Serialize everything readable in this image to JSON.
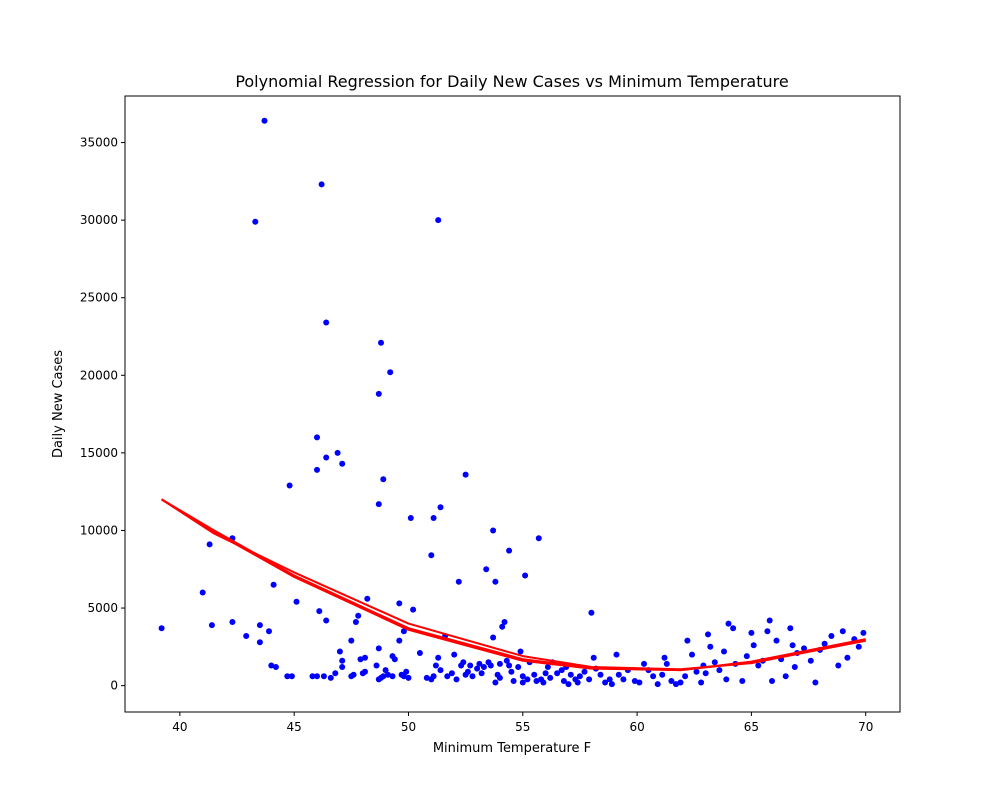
{
  "chart_data": {
    "type": "scatter",
    "title": "Polynomial Regression for Daily New Cases vs Minimum Temperature",
    "xlabel": "Minimum Temperature F",
    "ylabel": "Daily New Cases",
    "xlim": [
      37.6,
      71.5
    ],
    "ylim": [
      -1700,
      38000
    ],
    "x_ticks": [
      40,
      45,
      50,
      55,
      60,
      65,
      70
    ],
    "y_ticks": [
      0,
      5000,
      10000,
      15000,
      20000,
      25000,
      30000,
      35000
    ],
    "grid": false,
    "legend": "none",
    "colors": {
      "points": "#0000ff",
      "fit": "#ff0000"
    },
    "series": [
      {
        "type": "scatter",
        "points": [
          [
            39.2,
            3700
          ],
          [
            41.0,
            6000
          ],
          [
            41.3,
            9100
          ],
          [
            41.4,
            3900
          ],
          [
            42.3,
            9500
          ],
          [
            42.3,
            4100
          ],
          [
            42.9,
            3200
          ],
          [
            43.3,
            29900
          ],
          [
            43.5,
            3900
          ],
          [
            43.5,
            2800
          ],
          [
            43.7,
            36400
          ],
          [
            43.9,
            3500
          ],
          [
            44.0,
            1300
          ],
          [
            44.1,
            6500
          ],
          [
            44.2,
            1200
          ],
          [
            44.7,
            600
          ],
          [
            44.8,
            12900
          ],
          [
            44.9,
            600
          ],
          [
            45.1,
            5400
          ],
          [
            45.8,
            600
          ],
          [
            46.0,
            16000
          ],
          [
            46.0,
            13900
          ],
          [
            46.0,
            600
          ],
          [
            46.1,
            4800
          ],
          [
            46.2,
            32300
          ],
          [
            46.3,
            600
          ],
          [
            46.4,
            14700
          ],
          [
            46.4,
            4200
          ],
          [
            46.4,
            23400
          ],
          [
            46.6,
            500
          ],
          [
            46.8,
            800
          ],
          [
            46.9,
            15000
          ],
          [
            47.0,
            2200
          ],
          [
            47.1,
            14300
          ],
          [
            47.1,
            1200
          ],
          [
            47.1,
            1600
          ],
          [
            47.5,
            2900
          ],
          [
            47.5,
            600
          ],
          [
            47.6,
            700
          ],
          [
            47.7,
            4100
          ],
          [
            47.8,
            4500
          ],
          [
            47.9,
            1700
          ],
          [
            48.0,
            800
          ],
          [
            48.1,
            900
          ],
          [
            48.1,
            1800
          ],
          [
            48.2,
            5600
          ],
          [
            48.6,
            1300
          ],
          [
            48.7,
            18800
          ],
          [
            48.7,
            11700
          ],
          [
            48.7,
            2400
          ],
          [
            48.7,
            400
          ],
          [
            48.8,
            22100
          ],
          [
            48.8,
            500
          ],
          [
            48.9,
            13300
          ],
          [
            48.9,
            600
          ],
          [
            49.0,
            1000
          ],
          [
            49.1,
            700
          ],
          [
            49.2,
            20200
          ],
          [
            49.3,
            1900
          ],
          [
            49.3,
            600
          ],
          [
            49.4,
            1700
          ],
          [
            49.6,
            5300
          ],
          [
            49.6,
            2900
          ],
          [
            49.7,
            700
          ],
          [
            49.8,
            3500
          ],
          [
            49.8,
            600
          ],
          [
            49.9,
            900
          ],
          [
            50.0,
            500
          ],
          [
            50.1,
            10800
          ],
          [
            50.2,
            4900
          ],
          [
            50.5,
            2100
          ],
          [
            50.8,
            500
          ],
          [
            51.0,
            8400
          ],
          [
            51.0,
            400
          ],
          [
            51.1,
            10800
          ],
          [
            51.1,
            600
          ],
          [
            51.2,
            1300
          ],
          [
            51.3,
            1800
          ],
          [
            51.3,
            30000
          ],
          [
            51.4,
            11500
          ],
          [
            51.4,
            1000
          ],
          [
            51.6,
            3200
          ],
          [
            51.7,
            600
          ],
          [
            51.9,
            800
          ],
          [
            52.0,
            2000
          ],
          [
            52.1,
            400
          ],
          [
            52.2,
            6700
          ],
          [
            52.3,
            1300
          ],
          [
            52.4,
            1500
          ],
          [
            52.5,
            13600
          ],
          [
            52.5,
            700
          ],
          [
            52.6,
            900
          ],
          [
            52.7,
            1300
          ],
          [
            52.8,
            600
          ],
          [
            53.0,
            1100
          ],
          [
            53.1,
            1400
          ],
          [
            53.2,
            800
          ],
          [
            53.3,
            1200
          ],
          [
            53.4,
            7500
          ],
          [
            53.5,
            1500
          ],
          [
            53.6,
            1300
          ],
          [
            53.7,
            10000
          ],
          [
            53.7,
            3100
          ],
          [
            53.8,
            6700
          ],
          [
            53.8,
            200
          ],
          [
            53.9,
            700
          ],
          [
            54.0,
            1400
          ],
          [
            54.0,
            500
          ],
          [
            54.1,
            3800
          ],
          [
            54.2,
            4100
          ],
          [
            54.3,
            1600
          ],
          [
            54.4,
            8700
          ],
          [
            54.4,
            1300
          ],
          [
            54.5,
            900
          ],
          [
            54.6,
            300
          ],
          [
            54.8,
            1200
          ],
          [
            54.9,
            2200
          ],
          [
            55.0,
            600
          ],
          [
            55.0,
            200
          ],
          [
            55.1,
            7100
          ],
          [
            55.2,
            400
          ],
          [
            55.3,
            1500
          ],
          [
            55.5,
            700
          ],
          [
            55.6,
            300
          ],
          [
            55.7,
            9500
          ],
          [
            55.8,
            400
          ],
          [
            55.9,
            200
          ],
          [
            56.0,
            800
          ],
          [
            56.1,
            1200
          ],
          [
            56.2,
            500
          ],
          [
            56.3,
            1500
          ],
          [
            56.5,
            800
          ],
          [
            56.7,
            1000
          ],
          [
            56.8,
            300
          ],
          [
            56.9,
            1200
          ],
          [
            57.0,
            100
          ],
          [
            57.1,
            700
          ],
          [
            57.3,
            400
          ],
          [
            57.4,
            200
          ],
          [
            57.5,
            600
          ],
          [
            57.7,
            900
          ],
          [
            57.9,
            400
          ],
          [
            58.0,
            4700
          ],
          [
            58.1,
            1800
          ],
          [
            58.2,
            1100
          ],
          [
            58.4,
            700
          ],
          [
            58.6,
            200
          ],
          [
            58.8,
            400
          ],
          [
            58.9,
            100
          ],
          [
            59.1,
            2000
          ],
          [
            59.2,
            700
          ],
          [
            59.4,
            400
          ],
          [
            59.6,
            1000
          ],
          [
            59.9,
            300
          ],
          [
            60.1,
            200
          ],
          [
            60.3,
            1400
          ],
          [
            60.5,
            1000
          ],
          [
            60.7,
            600
          ],
          [
            60.9,
            100
          ],
          [
            61.1,
            700
          ],
          [
            61.2,
            1800
          ],
          [
            61.3,
            1400
          ],
          [
            61.5,
            300
          ],
          [
            61.7,
            100
          ],
          [
            61.9,
            200
          ],
          [
            62.1,
            600
          ],
          [
            62.2,
            2900
          ],
          [
            62.4,
            2000
          ],
          [
            62.6,
            900
          ],
          [
            62.8,
            200
          ],
          [
            62.9,
            1300
          ],
          [
            63.0,
            800
          ],
          [
            63.1,
            3300
          ],
          [
            63.2,
            2500
          ],
          [
            63.4,
            1500
          ],
          [
            63.6,
            1000
          ],
          [
            63.8,
            2200
          ],
          [
            63.9,
            400
          ],
          [
            64.0,
            4000
          ],
          [
            64.2,
            3700
          ],
          [
            64.3,
            1400
          ],
          [
            64.6,
            300
          ],
          [
            64.8,
            1900
          ],
          [
            65.0,
            3400
          ],
          [
            65.1,
            2600
          ],
          [
            65.3,
            1300
          ],
          [
            65.5,
            1600
          ],
          [
            65.7,
            3500
          ],
          [
            65.8,
            4200
          ],
          [
            65.9,
            300
          ],
          [
            66.1,
            2900
          ],
          [
            66.3,
            1700
          ],
          [
            66.5,
            600
          ],
          [
            66.7,
            3700
          ],
          [
            66.8,
            2600
          ],
          [
            66.9,
            1200
          ],
          [
            67.0,
            2100
          ],
          [
            67.3,
            2400
          ],
          [
            67.6,
            1600
          ],
          [
            67.8,
            200
          ],
          [
            68.0,
            2300
          ],
          [
            68.2,
            2700
          ],
          [
            68.5,
            3200
          ],
          [
            68.8,
            1300
          ],
          [
            69.0,
            3500
          ],
          [
            69.2,
            1800
          ],
          [
            69.5,
            3000
          ],
          [
            69.7,
            2500
          ],
          [
            69.9,
            3400
          ]
        ]
      },
      {
        "type": "line",
        "curves": [
          [
            [
              39.2,
              12000
            ],
            [
              41.5,
              9900
            ],
            [
              45.0,
              7000
            ],
            [
              50.0,
              3600
            ],
            [
              55.0,
              1600
            ],
            [
              58.0,
              1100
            ],
            [
              61.9,
              1000
            ],
            [
              65.0,
              1500
            ],
            [
              70.0,
              2900
            ]
          ],
          [
            [
              39.2,
              12000
            ],
            [
              41.5,
              9800
            ],
            [
              45.0,
              7300
            ],
            [
              50.0,
              4000
            ],
            [
              55.0,
              1900
            ],
            [
              58.0,
              1200
            ],
            [
              61.9,
              1050
            ],
            [
              65.0,
              1450
            ],
            [
              70.0,
              2900
            ]
          ],
          [
            [
              39.2,
              12000
            ],
            [
              41.5,
              10000
            ],
            [
              45.0,
              7100
            ],
            [
              50.0,
              3700
            ],
            [
              55.0,
              1700
            ],
            [
              58.0,
              1150
            ],
            [
              61.9,
              1000
            ],
            [
              65.0,
              1550
            ],
            [
              70.0,
              3000
            ]
          ]
        ]
      }
    ]
  }
}
